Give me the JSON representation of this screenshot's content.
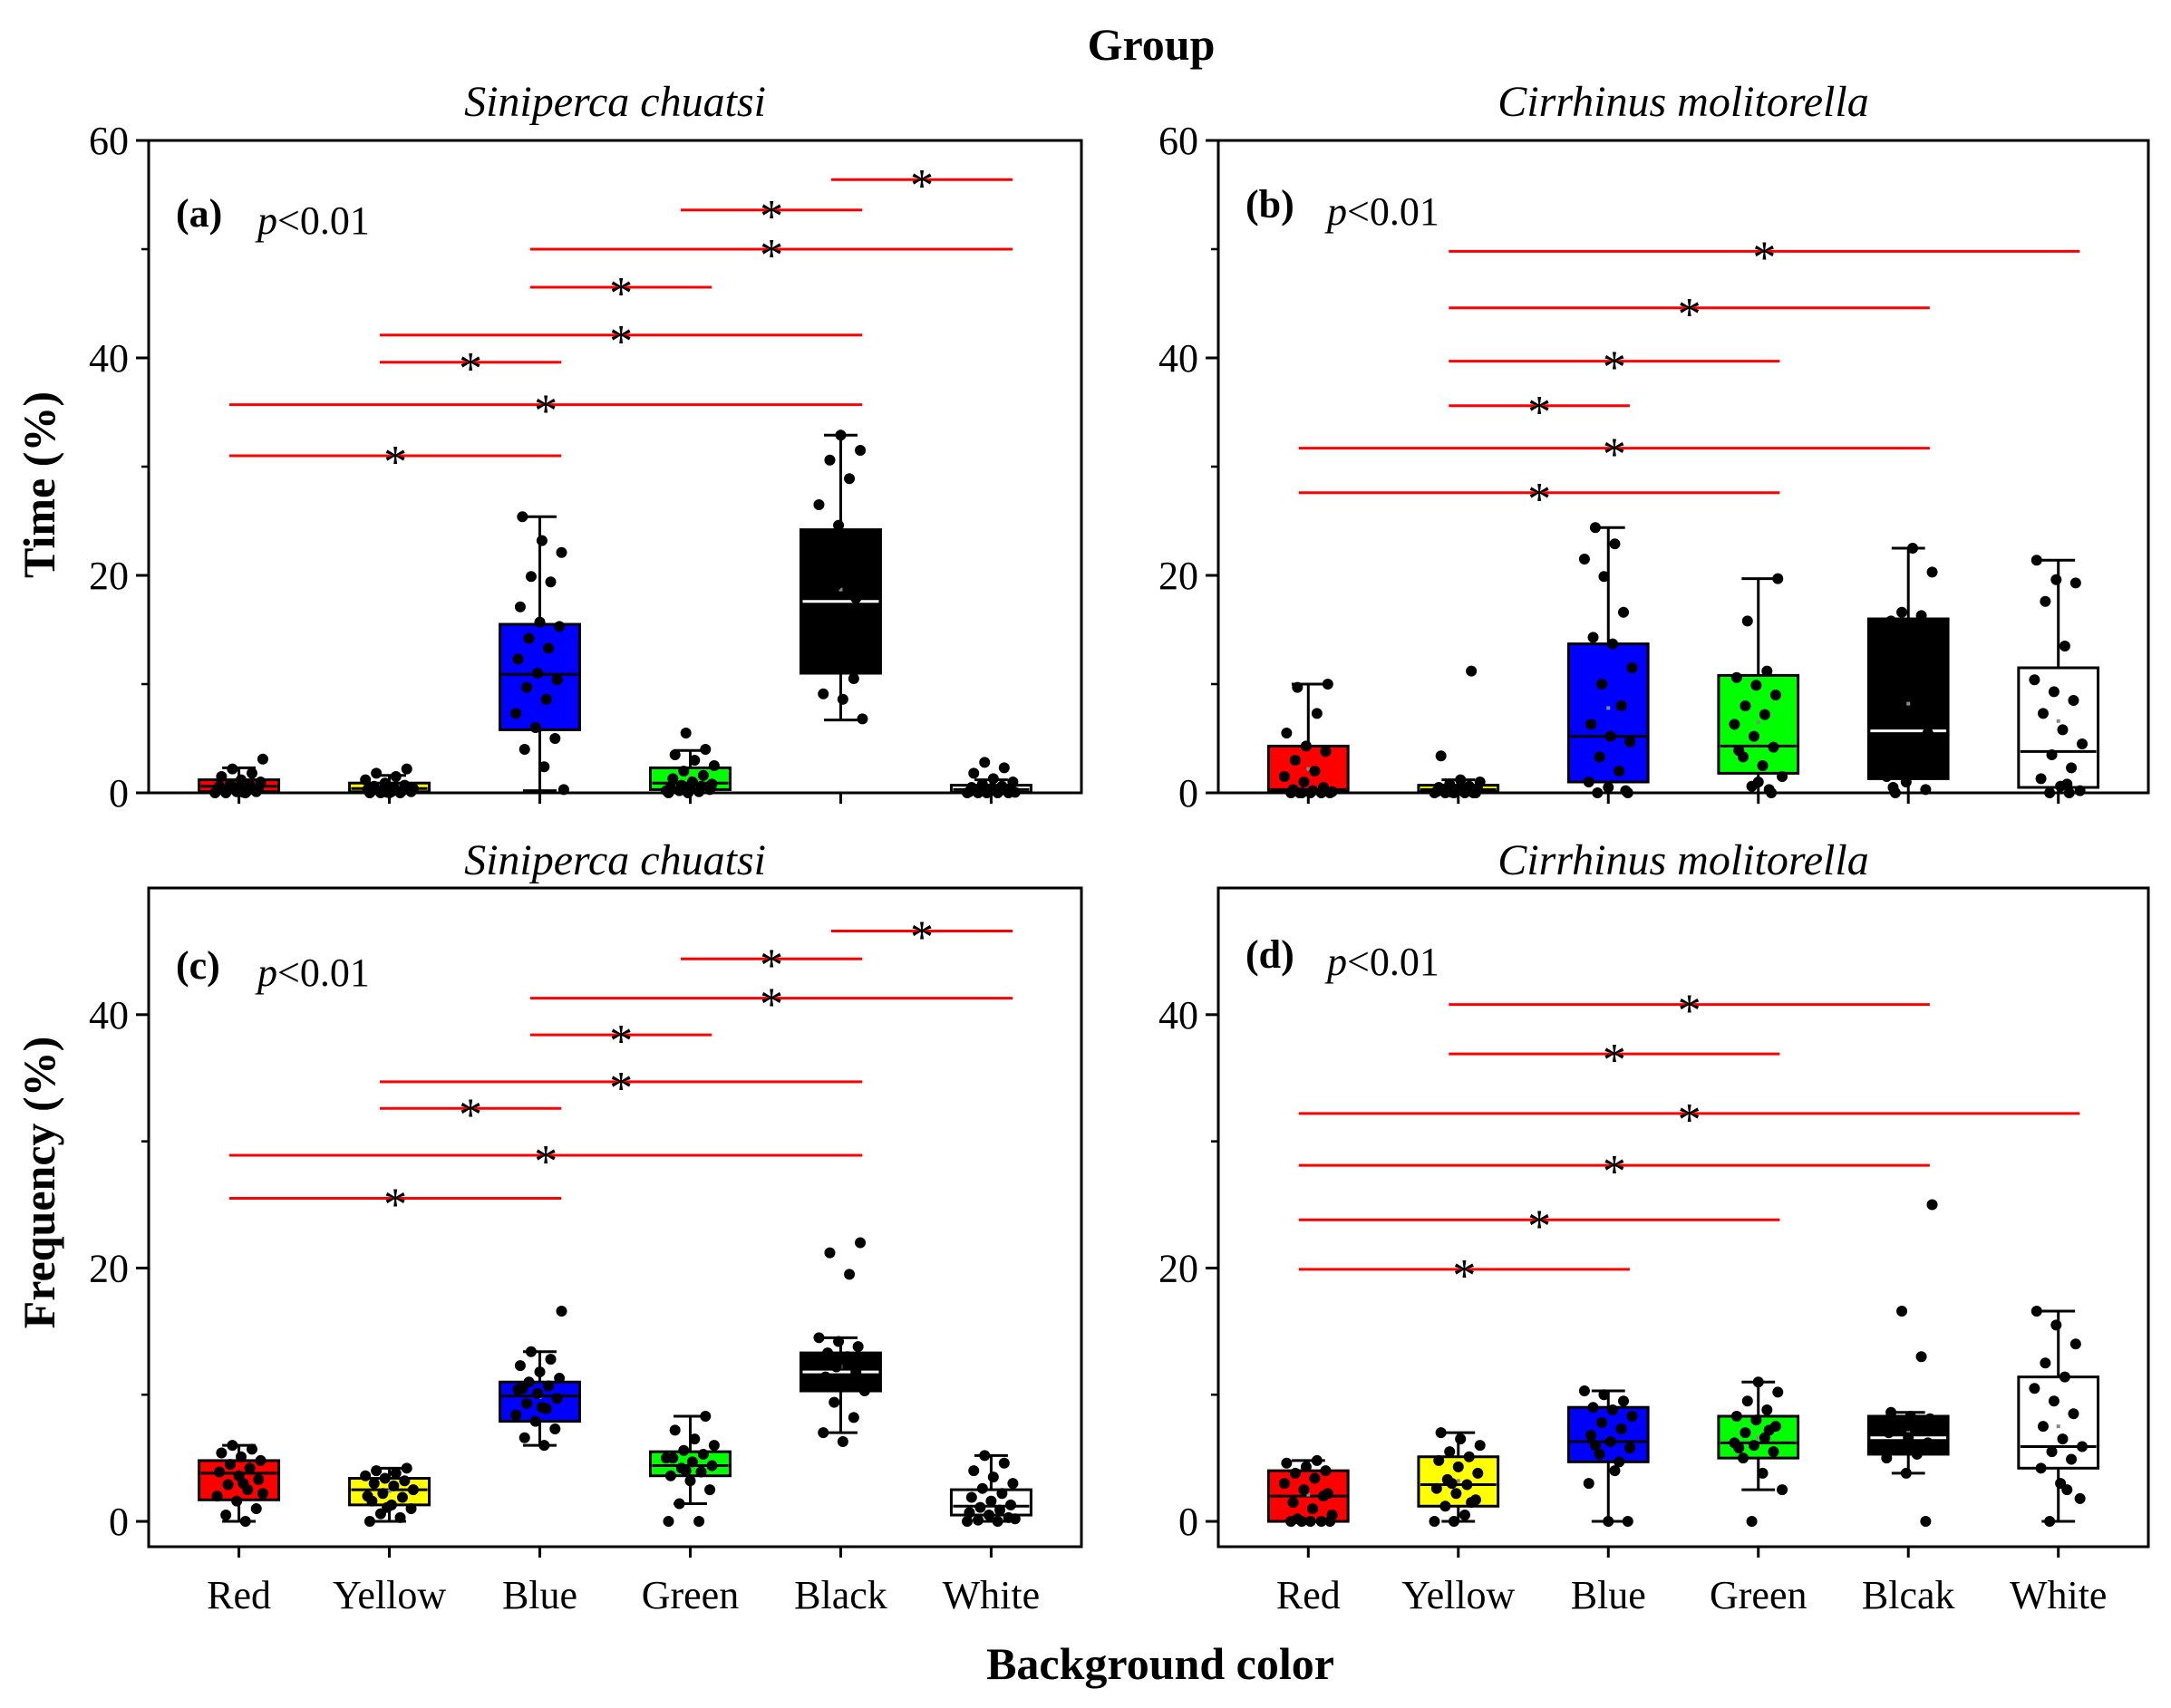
{
  "figure": {
    "top_title": "Group",
    "x_axis_label": "Background color",
    "y_axis_labels": {
      "top_row": "Time (%)",
      "bottom_row": "Frequency (%)"
    },
    "p_value_label": "p<0.01",
    "significance_mark": "*",
    "colors": {
      "significance_line": "#ff0000"
    }
  },
  "chart_data": [
    {
      "id": "a",
      "type": "box",
      "letter": "(a)",
      "title": "Siniperca chuatsi",
      "p_text": "p<0.01",
      "ylabel": "Time (%)",
      "ylim": [
        0,
        60
      ],
      "yticks": [
        0,
        20,
        40,
        60
      ],
      "categories": [
        "Red",
        "Yellow",
        "Blue",
        "Green",
        "Black",
        "White"
      ],
      "show_category_labels": false,
      "boxes": [
        {
          "label": "Red",
          "fill": "#ff0000",
          "median_color": "#000000",
          "min": 0,
          "q1": 0.1,
          "median": 0.6,
          "q3": 1.2,
          "max": 2.3,
          "mean": 0.7,
          "points": [
            0,
            0,
            0,
            0.1,
            0.1,
            0.2,
            0.2,
            0.3,
            0.4,
            0.5,
            0.6,
            0.7,
            0.8,
            1.0,
            1.2,
            1.5,
            1.8,
            2.2,
            3.1,
            0.05
          ]
        },
        {
          "label": "Yellow",
          "fill": "#ffff00",
          "median_color": "#000000",
          "min": 0,
          "q1": 0.1,
          "median": 0.4,
          "q3": 0.9,
          "max": 1.6,
          "mean": 0.5,
          "points": [
            0,
            0,
            0,
            0,
            0.1,
            0.1,
            0.2,
            0.2,
            0.3,
            0.4,
            0.5,
            0.6,
            0.7,
            0.9,
            1.2,
            1.5,
            1.8,
            2.2,
            0.05,
            0.3
          ]
        },
        {
          "label": "Blue",
          "fill": "#0000ff",
          "median_color": "#000000",
          "min": 0.2,
          "q1": 5.8,
          "median": 10.9,
          "q3": 15.5,
          "max": 25.4,
          "mean": 11.0,
          "points": [
            0.3,
            2.4,
            4.0,
            5.0,
            6.0,
            7.3,
            8.6,
            9.7,
            10.4,
            11.0,
            12.3,
            13.3,
            14.2,
            15.3,
            15.7,
            17.1,
            19.4,
            19.9,
            22.1,
            23.2,
            25.4
          ]
        },
        {
          "label": "Green",
          "fill": "#00ff00",
          "median_color": "#000000",
          "min": 0,
          "q1": 0.3,
          "median": 0.9,
          "q3": 2.3,
          "max": 3.9,
          "mean": 1.4,
          "points": [
            0,
            0,
            0.1,
            0.2,
            0.3,
            0.4,
            0.5,
            0.6,
            0.7,
            0.8,
            1.0,
            1.3,
            1.6,
            2.0,
            2.5,
            3.0,
            3.5,
            4.0,
            5.5,
            0.2
          ]
        },
        {
          "label": "Black",
          "fill": "#000000",
          "median_color": "#ffffff",
          "min": 6.7,
          "q1": 11.0,
          "median": 17.6,
          "q3": 24.2,
          "max": 32.9,
          "mean": 18.7,
          "points": [
            6.8,
            8.6,
            9.1,
            10.5,
            12.0,
            13.6,
            15.1,
            16.7,
            17.9,
            19.1,
            20.2,
            21.3,
            22.4,
            23.6,
            24.6,
            26.5,
            28.9,
            30.6,
            31.5,
            32.9
          ]
        },
        {
          "label": "White",
          "fill": "#ffffff",
          "median_color": "#000000",
          "min": 0,
          "q1": 0.05,
          "median": 0.3,
          "q3": 0.7,
          "max": 1.2,
          "mean": 0.4,
          "points": [
            0,
            0,
            0,
            0,
            0,
            0.1,
            0.1,
            0.2,
            0.2,
            0.3,
            0.4,
            0.5,
            0.6,
            0.8,
            1.0,
            1.3,
            1.8,
            2.3,
            2.8,
            0.05
          ]
        }
      ],
      "significance": [
        {
          "from": "Red",
          "to": "Blue",
          "y": 31.0
        },
        {
          "from": "Red",
          "to": "Black",
          "y": 35.7
        },
        {
          "from": "Yellow",
          "to": "Blue",
          "y": 39.6
        },
        {
          "from": "Yellow",
          "to": "Black",
          "y": 42.1
        },
        {
          "from": "Blue",
          "to": "Green",
          "y": 46.5
        },
        {
          "from": "Blue",
          "to": "White",
          "y": 50.0
        },
        {
          "from": "Green",
          "to": "Black",
          "y": 53.6
        },
        {
          "from": "Black",
          "to": "White",
          "y": 56.4
        }
      ]
    },
    {
      "id": "b",
      "type": "box",
      "letter": "(b)",
      "title": "Cirrhinus molitorella",
      "p_text": "p<0.01",
      "ylabel": "",
      "ylim": [
        0,
        60
      ],
      "yticks": [
        0,
        20,
        40,
        60
      ],
      "categories": [
        "Red",
        "Yellow",
        "Blue",
        "Green",
        "Blcak",
        "White"
      ],
      "show_category_labels": false,
      "boxes": [
        {
          "label": "Red",
          "fill": "#ff0000",
          "median_color": "#000000",
          "min": 0,
          "q1": 0.1,
          "median": 0.3,
          "q3": 4.3,
          "max": 10.0,
          "mean": 2.2,
          "points": [
            0,
            0,
            0,
            0,
            0,
            0,
            0.1,
            0.2,
            0.3,
            0.5,
            1.0,
            1.5,
            2.0,
            3.0,
            3.8,
            4.3,
            5.5,
            7.3,
            9.7,
            10.0
          ]
        },
        {
          "label": "Yellow",
          "fill": "#ffff00",
          "median_color": "#000000",
          "min": 0,
          "q1": 0.1,
          "median": 0.3,
          "q3": 0.7,
          "max": 1.2,
          "mean": 0.9,
          "points": [
            0,
            0,
            0,
            0,
            0,
            0,
            0.1,
            0.1,
            0.2,
            0.2,
            0.3,
            0.4,
            0.5,
            0.6,
            0.8,
            1.0,
            1.2,
            3.4,
            11.2,
            0.05
          ]
        },
        {
          "label": "Blue",
          "fill": "#0000ff",
          "median_color": "#000000",
          "min": 0,
          "q1": 1.0,
          "median": 5.2,
          "q3": 13.7,
          "max": 24.4,
          "mean": 7.8,
          "points": [
            0,
            0,
            0.5,
            1.0,
            2.0,
            3.3,
            4.7,
            5.2,
            6.3,
            8.0,
            10.0,
            11.5,
            13.7,
            14.3,
            16.6,
            19.9,
            21.5,
            22.9,
            24.4,
            0.2
          ]
        },
        {
          "label": "Green",
          "fill": "#00ff00",
          "median_color": "#000000",
          "min": 0,
          "q1": 1.8,
          "median": 4.3,
          "q3": 10.8,
          "max": 19.7,
          "mean": 6.5,
          "points": [
            0,
            0.6,
            1.5,
            2.5,
            3.3,
            4.2,
            5.2,
            6.3,
            7.2,
            8.0,
            9.0,
            9.9,
            10.6,
            11.2,
            15.8,
            19.7,
            1.0,
            3.9,
            0.3
          ]
        },
        {
          "label": "Blcak",
          "fill": "#000000",
          "median_color": "#ffffff",
          "min": 0,
          "q1": 1.3,
          "median": 5.7,
          "q3": 16.0,
          "max": 22.5,
          "mean": 8.2,
          "points": [
            0,
            0.3,
            1.0,
            1.5,
            2.8,
            4.0,
            5.5,
            7.2,
            8.8,
            10.0,
            11.6,
            13.0,
            14.6,
            15.8,
            16.3,
            16.6,
            20.3,
            22.5,
            0.5
          ]
        },
        {
          "label": "White",
          "fill": "#ffffff",
          "median_color": "#000000",
          "min": 0,
          "q1": 0.5,
          "median": 3.8,
          "q3": 11.5,
          "max": 21.4,
          "mean": 6.6,
          "points": [
            0,
            0,
            0.2,
            0.6,
            1.3,
            2.3,
            3.5,
            4.5,
            5.8,
            7.3,
            8.5,
            9.3,
            10.4,
            13.5,
            17.6,
            19.3,
            19.6,
            21.4,
            0.8
          ]
        }
      ],
      "significance": [
        {
          "from": "Red",
          "to": "Green",
          "y": 27.6
        },
        {
          "from": "Red",
          "to": "Blcak",
          "y": 31.7
        },
        {
          "from": "Yellow",
          "to": "Blue",
          "y": 35.6
        },
        {
          "from": "Yellow",
          "to": "Green",
          "y": 39.7
        },
        {
          "from": "Yellow",
          "to": "Blcak",
          "y": 44.6
        },
        {
          "from": "Yellow",
          "to": "White",
          "y": 49.8
        }
      ]
    },
    {
      "id": "c",
      "type": "box",
      "letter": "(c)",
      "title": "Siniperca chuatsi",
      "p_text": "p<0.01",
      "ylabel": "Frequency (%)",
      "ylim": [
        -2,
        50
      ],
      "yticks": [
        0,
        20,
        40
      ],
      "categories": [
        "Red",
        "Yellow",
        "Blue",
        "Green",
        "Black",
        "White"
      ],
      "show_category_labels": true,
      "boxes": [
        {
          "label": "Red",
          "fill": "#ff0000",
          "median_color": "#000000",
          "min": 0,
          "q1": 1.7,
          "median": 3.8,
          "q3": 4.8,
          "max": 6.0,
          "mean": 3.4,
          "points": [
            0,
            0.5,
            1.0,
            1.6,
            2.0,
            2.5,
            2.9,
            3.3,
            3.6,
            3.9,
            4.2,
            4.5,
            4.8,
            5.1,
            5.4,
            5.7,
            6.0,
            2.2,
            3.0
          ]
        },
        {
          "label": "Yellow",
          "fill": "#ffff00",
          "median_color": "#000000",
          "min": 0,
          "q1": 1.3,
          "median": 2.5,
          "q3": 3.4,
          "max": 4.2,
          "mean": 2.4,
          "points": [
            0,
            0.3,
            0.6,
            1.0,
            1.3,
            1.6,
            1.9,
            2.2,
            2.5,
            2.8,
            3.0,
            3.2,
            3.4,
            3.6,
            3.8,
            4.0,
            4.2,
            1.1,
            2.0
          ]
        },
        {
          "label": "Blue",
          "fill": "#0000ff",
          "median_color": "#000000",
          "min": 6.0,
          "q1": 7.9,
          "median": 9.9,
          "q3": 11.0,
          "max": 13.4,
          "mean": 9.8,
          "points": [
            6.0,
            6.6,
            7.3,
            7.9,
            8.4,
            8.9,
            9.3,
            9.7,
            10.1,
            10.4,
            10.7,
            11.0,
            11.3,
            11.8,
            12.3,
            12.8,
            13.4,
            16.6,
            9.0,
            10.5
          ]
        },
        {
          "label": "Green",
          "fill": "#00ff00",
          "median_color": "#000000",
          "min": 1.4,
          "q1": 3.6,
          "median": 4.4,
          "q3": 5.5,
          "max": 8.3,
          "mean": 4.6,
          "points": [
            0,
            0,
            1.4,
            2.5,
            3.2,
            3.6,
            3.9,
            4.2,
            4.4,
            4.7,
            5.0,
            5.3,
            5.6,
            6.0,
            6.5,
            7.2,
            8.3,
            4.0,
            5.0
          ]
        },
        {
          "label": "Black",
          "fill": "#000000",
          "median_color": "#ffffff",
          "min": 7.0,
          "q1": 10.3,
          "median": 11.8,
          "q3": 13.3,
          "max": 14.5,
          "mean": 12.2,
          "points": [
            6.3,
            7.0,
            8.2,
            9.4,
            10.3,
            10.9,
            11.4,
            11.8,
            12.2,
            12.6,
            13.0,
            13.3,
            13.8,
            14.2,
            14.5,
            19.5,
            21.2,
            22.0,
            11.0
          ]
        },
        {
          "label": "White",
          "fill": "#ffffff",
          "median_color": "#000000",
          "min": 0,
          "q1": 0.5,
          "median": 1.2,
          "q3": 2.5,
          "max": 5.2,
          "mean": 1.7,
          "points": [
            0,
            0,
            0.1,
            0.3,
            0.5,
            0.7,
            0.9,
            1.1,
            1.3,
            1.6,
            1.9,
            2.2,
            2.6,
            3.0,
            3.5,
            4.0,
            4.6,
            5.2,
            0.2
          ]
        }
      ],
      "significance": [
        {
          "from": "Red",
          "to": "Blue",
          "y": 25.5
        },
        {
          "from": "Red",
          "to": "Black",
          "y": 28.9
        },
        {
          "from": "Yellow",
          "to": "Blue",
          "y": 32.6
        },
        {
          "from": "Yellow",
          "to": "Black",
          "y": 34.7
        },
        {
          "from": "Blue",
          "to": "Green",
          "y": 38.4
        },
        {
          "from": "Blue",
          "to": "White",
          "y": 41.3
        },
        {
          "from": "Green",
          "to": "Black",
          "y": 44.4
        },
        {
          "from": "Black",
          "to": "White",
          "y": 46.6
        }
      ]
    },
    {
      "id": "d",
      "type": "box",
      "letter": "(d)",
      "title": "Cirrhinus molitorella",
      "p_text": "p<0.01",
      "ylabel": "",
      "ylim": [
        -2,
        50
      ],
      "yticks": [
        0,
        20,
        40
      ],
      "categories": [
        "Red",
        "Yellow",
        "Blue",
        "Green",
        "Blcak",
        "White"
      ],
      "show_category_labels": true,
      "boxes": [
        {
          "label": "Red",
          "fill": "#ff0000",
          "median_color": "#000000",
          "min": 0,
          "q1": 0,
          "median": 2.0,
          "q3": 4.0,
          "max": 4.8,
          "mean": 2.1,
          "points": [
            0,
            0,
            0,
            0,
            0,
            0.5,
            1.0,
            1.5,
            2.0,
            2.5,
            3.0,
            3.4,
            3.8,
            4.0,
            4.3,
            4.6,
            4.8,
            0.2,
            2.2
          ]
        },
        {
          "label": "Yellow",
          "fill": "#ffff00",
          "median_color": "#000000",
          "min": 0,
          "q1": 1.2,
          "median": 2.9,
          "q3": 5.1,
          "max": 7.0,
          "mean": 3.2,
          "points": [
            0,
            0,
            0.5,
            1.2,
            1.7,
            2.2,
            2.6,
            2.9,
            3.3,
            3.8,
            4.3,
            4.8,
            5.1,
            5.5,
            6.0,
            6.5,
            7.0,
            1.5,
            3.0
          ]
        },
        {
          "label": "Blue",
          "fill": "#0000ff",
          "median_color": "#000000",
          "min": 0,
          "q1": 4.7,
          "median": 6.3,
          "q3": 9.0,
          "max": 10.3,
          "mean": 6.5,
          "points": [
            0,
            0,
            3.0,
            4.7,
            5.3,
            5.8,
            6.3,
            6.8,
            7.3,
            7.8,
            8.3,
            8.8,
            9.0,
            9.5,
            10.0,
            10.3,
            4.0,
            6.0
          ]
        },
        {
          "label": "Green",
          "fill": "#00ff00",
          "median_color": "#000000",
          "min": 2.5,
          "q1": 5.0,
          "median": 6.2,
          "q3": 8.3,
          "max": 11.0,
          "mean": 6.6,
          "points": [
            0,
            2.5,
            3.8,
            5.0,
            5.5,
            6.0,
            6.2,
            6.6,
            7.0,
            7.5,
            8.0,
            8.3,
            8.8,
            9.5,
            10.2,
            11.0,
            5.8,
            7.2
          ]
        },
        {
          "label": "Blcak",
          "fill": "#000000",
          "median_color": "#ffffff",
          "min": 3.8,
          "q1": 5.3,
          "median": 6.6,
          "q3": 8.3,
          "max": 8.6,
          "mean": 7.0,
          "points": [
            0,
            3.8,
            5.0,
            5.3,
            5.8,
            6.2,
            6.6,
            7.0,
            7.4,
            7.8,
            8.1,
            8.3,
            8.6,
            13.0,
            16.6,
            25.0,
            6.0,
            7.5
          ]
        },
        {
          "label": "White",
          "fill": "#ffffff",
          "median_color": "#000000",
          "min": 0,
          "q1": 4.2,
          "median": 5.9,
          "q3": 11.4,
          "max": 16.6,
          "mean": 7.5,
          "points": [
            0,
            1.8,
            3.0,
            4.2,
            4.9,
            5.5,
            5.9,
            6.5,
            7.5,
            8.5,
            9.5,
            10.5,
            11.4,
            12.5,
            14.0,
            15.5,
            16.6,
            2.5
          ]
        }
      ],
      "significance": [
        {
          "from": "Red",
          "to": "Blue",
          "y": 19.9
        },
        {
          "from": "Red",
          "to": "Green",
          "y": 23.8
        },
        {
          "from": "Red",
          "to": "Blcak",
          "y": 28.1
        },
        {
          "from": "Red",
          "to": "White",
          "y": 32.2
        },
        {
          "from": "Yellow",
          "to": "Green",
          "y": 36.9
        },
        {
          "from": "Yellow",
          "to": "Blcak",
          "y": 40.8
        }
      ]
    }
  ]
}
